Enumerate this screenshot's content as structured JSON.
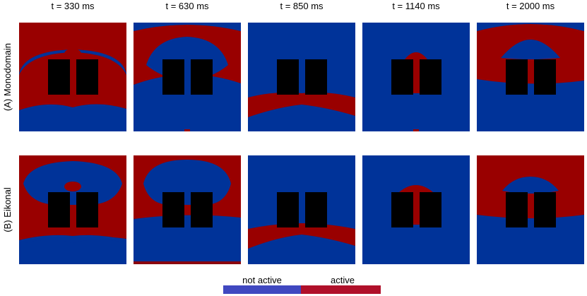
{
  "figure": {
    "column_titles": [
      "t = 330 ms",
      "t = 630 ms",
      "t = 850 ms",
      "t = 1140 ms",
      "t = 2000 ms"
    ],
    "row_labels": [
      "(A) Monodomain",
      "(B) Eikonal"
    ],
    "legend": {
      "not_active_label": "not active",
      "active_label": "active",
      "not_active_color": "#4048C0",
      "active_color": "#B0102A"
    },
    "colors": {
      "not_active_region": "#003399",
      "active_region": "#990000",
      "obstacle": "#000000"
    }
  }
}
